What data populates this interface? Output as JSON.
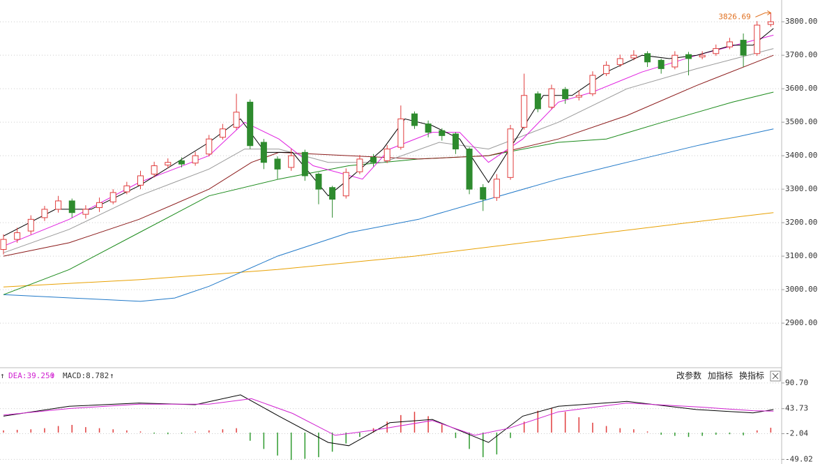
{
  "toolbar": [
    "改参数",
    "加指标",
    "换指标"
  ],
  "chart_data": [
    {
      "type": "candlestick",
      "annotation": "3826.69",
      "annotation_color": "#e07020",
      "up_color": "#e03c3c",
      "down_color": "#2e8b2e",
      "open": [
        3120,
        3150,
        3175,
        3215,
        3240,
        3265,
        3225,
        3245,
        3262,
        3292,
        3312,
        3345,
        3372,
        3385,
        3378,
        3405,
        3455,
        3485,
        3560,
        3440,
        3390,
        3365,
        3410,
        3345,
        3305,
        3280,
        3352,
        3395,
        3385,
        3425,
        3525,
        3495,
        3475,
        3465,
        3420,
        3305,
        3275,
        3335,
        3485,
        3585,
        3545,
        3598,
        3575,
        3585,
        3645,
        3672,
        3692,
        3705,
        3685,
        3665,
        3702,
        3695,
        3705,
        3725,
        3745,
        3705,
        3792
      ],
      "high": [
        3165,
        3185,
        3222,
        3250,
        3280,
        3272,
        3252,
        3275,
        3300,
        3322,
        3355,
        3382,
        3392,
        3395,
        3412,
        3462,
        3495,
        3585,
        3568,
        3450,
        3398,
        3420,
        3418,
        3350,
        3310,
        3362,
        3402,
        3405,
        3432,
        3550,
        3532,
        3505,
        3482,
        3470,
        3425,
        3315,
        3345,
        3492,
        3645,
        3592,
        3612,
        3605,
        3595,
        3652,
        3682,
        3702,
        3715,
        3712,
        3690,
        3712,
        3710,
        3712,
        3732,
        3752,
        3765,
        3802,
        3826.69
      ],
      "low": [
        3105,
        3140,
        3165,
        3205,
        3230,
        3215,
        3212,
        3232,
        3255,
        3285,
        3300,
        3335,
        3362,
        3365,
        3370,
        3398,
        3448,
        3478,
        3420,
        3360,
        3330,
        3355,
        3325,
        3255,
        3215,
        3272,
        3345,
        3368,
        3378,
        3418,
        3480,
        3455,
        3445,
        3405,
        3285,
        3235,
        3265,
        3328,
        3478,
        3530,
        3538,
        3555,
        3565,
        3578,
        3638,
        3665,
        3685,
        3665,
        3645,
        3658,
        3640,
        3688,
        3698,
        3718,
        3665,
        3698,
        3785
      ],
      "close": [
        3150,
        3170,
        3210,
        3240,
        3265,
        3230,
        3240,
        3260,
        3290,
        3310,
        3340,
        3370,
        3380,
        3375,
        3400,
        3450,
        3480,
        3530,
        3430,
        3380,
        3360,
        3400,
        3340,
        3300,
        3270,
        3350,
        3390,
        3380,
        3420,
        3510,
        3490,
        3470,
        3460,
        3420,
        3300,
        3270,
        3330,
        3480,
        3580,
        3540,
        3600,
        3570,
        3580,
        3640,
        3670,
        3690,
        3700,
        3680,
        3660,
        3700,
        3690,
        3700,
        3720,
        3740,
        3700,
        3790,
        3800
      ],
      "lines": [
        {
          "color": "#e8a000",
          "x": [
            0,
            10,
            20,
            30,
            40,
            50,
            56.2
          ],
          "values": [
            3008,
            3030,
            3060,
            3100,
            3150,
            3200,
            3230
          ]
        },
        {
          "color": "#1f78c8",
          "x": [
            0,
            5,
            10,
            12.5,
            15,
            20,
            25.2,
            30.3,
            35.4,
            40.5,
            45.5,
            50.6,
            56.2
          ],
          "values": [
            2985,
            2975,
            2965,
            2975,
            3010,
            3100,
            3170,
            3210,
            3270,
            3330,
            3380,
            3430,
            3480
          ]
        },
        {
          "color": "#1a8a1a",
          "x": [
            0,
            4.8,
            9.9,
            15,
            20.1,
            25.2,
            30.3,
            35.4,
            40.5,
            44,
            48.1,
            53.2,
            56.2
          ],
          "values": [
            2985,
            3060,
            3170,
            3280,
            3330,
            3370,
            3390,
            3400,
            3440,
            3450,
            3500,
            3560,
            3590
          ]
        },
        {
          "color": "#8b1a1a",
          "x": [
            0,
            4.8,
            9.9,
            15,
            18.1,
            20.1,
            25.2,
            30.3,
            35.4,
            40.5,
            45.5,
            50.6,
            56.2
          ],
          "values": [
            3100,
            3140,
            3210,
            3300,
            3380,
            3410,
            3400,
            3390,
            3400,
            3450,
            3520,
            3610,
            3700
          ]
        },
        {
          "color": "#999999",
          "x": [
            0,
            4.8,
            9.9,
            15,
            17.6,
            20.1,
            23.7,
            27.7,
            31.8,
            35.4,
            40.5,
            45.5,
            50.6,
            56.2
          ],
          "values": [
            3110,
            3180,
            3280,
            3360,
            3420,
            3420,
            3380,
            3380,
            3440,
            3420,
            3500,
            3600,
            3660,
            3720
          ]
        },
        {
          "color": "#e020e0",
          "x": [
            0,
            4.8,
            9.9,
            15,
            17.6,
            20.1,
            22.6,
            26.2,
            28.2,
            31.3,
            33.3,
            35.4,
            37.9,
            40.5,
            43,
            46.6,
            50.6,
            56.2
          ],
          "values": [
            3130,
            3210,
            3320,
            3400,
            3500,
            3450,
            3370,
            3330,
            3420,
            3470,
            3470,
            3380,
            3450,
            3560,
            3590,
            3650,
            3700,
            3760
          ]
        },
        {
          "color": "#000000",
          "x": [
            0,
            3.8,
            6.4,
            9.9,
            15,
            17.3,
            19.1,
            21.1,
            23.7,
            25.2,
            27.7,
            29.3,
            31.3,
            33.3,
            35.4,
            37.4,
            39.4,
            41.5,
            44,
            46.6,
            48.6,
            50.6,
            53.2,
            54.7,
            56.2
          ],
          "values": [
            3160,
            3240,
            3240,
            3310,
            3440,
            3510,
            3410,
            3410,
            3280,
            3330,
            3420,
            3510,
            3490,
            3450,
            3320,
            3450,
            3580,
            3580,
            3650,
            3700,
            3690,
            3700,
            3730,
            3730,
            3780
          ]
        }
      ],
      "ylim": [
        2771,
        3865
      ],
      "yticks": [
        {
          "value": 2900,
          "label": "2900.00"
        },
        {
          "value": 3000,
          "label": "3000.00"
        },
        {
          "value": 3100,
          "label": "3100.00"
        },
        {
          "value": 3200,
          "label": "3200.00"
        },
        {
          "value": 3300,
          "label": "3300.00"
        },
        {
          "value": 3400,
          "label": "3400.00"
        },
        {
          "value": 3500,
          "label": "3500.00"
        },
        {
          "value": 3600,
          "label": "3600.00"
        },
        {
          "value": 3700,
          "label": "3700.00"
        },
        {
          "value": 3800,
          "label": "3800.00"
        }
      ],
      "grid": true
    },
    {
      "type": "macd",
      "lines": [
        {
          "color": "#000000",
          "x": [
            0,
            4.8,
            9.9,
            14,
            17.3,
            20.1,
            23.7,
            25.2,
            28.2,
            31.3,
            35.4,
            37.9,
            40.5,
            45.5,
            50.6,
            54.7,
            56.2
          ],
          "values": [
            30,
            48,
            54,
            51,
            69,
            30,
            -18,
            -24,
            18,
            24,
            -18,
            30,
            48,
            57,
            42,
            36,
            42
          ]
        },
        {
          "name": "DEA:39.250",
          "color": "#d020d0",
          "x": [
            0,
            4.8,
            9.9,
            15,
            18.1,
            21.1,
            24.2,
            27.2,
            31.3,
            34.4,
            36.9,
            40.5,
            45.5,
            50.6,
            54.7,
            56.2
          ],
          "values": [
            32,
            44,
            52,
            52,
            62,
            35,
            -5,
            5,
            22,
            -5,
            8,
            38,
            54,
            47,
            40,
            39.25
          ]
        }
      ],
      "bars": {
        "name": "MACD:8.782",
        "values": [
          4,
          5,
          6,
          8,
          12,
          14,
          10,
          8,
          6,
          4,
          2,
          -2,
          -3,
          -2,
          2,
          4,
          6,
          8,
          -15,
          -30,
          -42,
          -50,
          -48,
          -45,
          -35,
          -20,
          -8,
          8,
          20,
          32,
          38,
          30,
          15,
          -10,
          -30,
          -45,
          -40,
          -10,
          20,
          40,
          45,
          38,
          28,
          18,
          12,
          8,
          6,
          2,
          -4,
          -6,
          -8,
          -6,
          -4,
          -3,
          -5,
          4,
          8.782
        ]
      },
      "up_color": "#e03c3c",
      "down_color": "#2e9a2e",
      "ylim": [
        -57.5,
        114.8
      ],
      "yticks": [
        -49.02,
        -2.04,
        43.73,
        {
          "value": 90.7,
          "label": "90.70"
        }
      ],
      "grid": true
    }
  ]
}
